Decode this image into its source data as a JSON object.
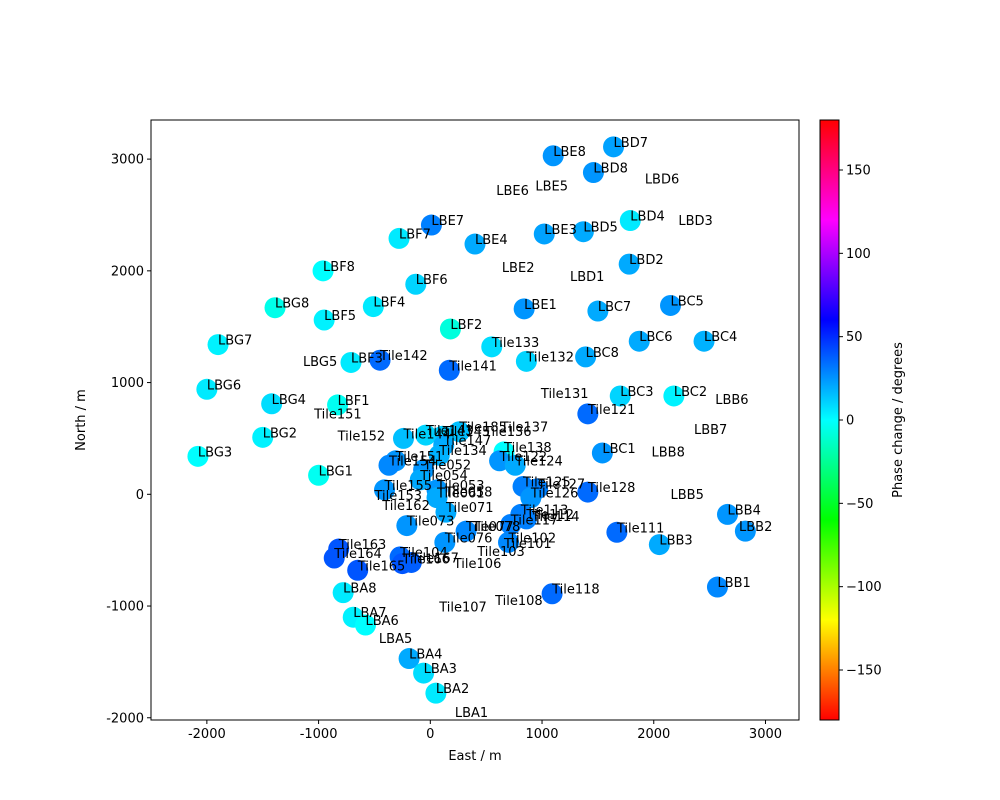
{
  "chart_data": {
    "type": "scatter",
    "xlabel": "East / m",
    "ylabel": "North / m",
    "xlim": [
      -2500,
      3300
    ],
    "ylim": [
      -2020,
      3350
    ],
    "xticks": [
      -2000,
      -1000,
      0,
      1000,
      2000,
      3000
    ],
    "yticks": [
      -2000,
      -1000,
      0,
      1000,
      2000,
      3000
    ],
    "colorbar": {
      "label": "Phase change / degrees",
      "range": [
        -180,
        180
      ],
      "ticks": [
        150,
        100,
        50,
        0,
        -50,
        -100,
        -150
      ],
      "colormap": "hsv"
    },
    "points": [
      {
        "label": "LBE8",
        "x": 1100,
        "y": 3030,
        "phase": 25
      },
      {
        "label": "LBD7",
        "x": 1640,
        "y": 3110,
        "phase": 22
      },
      {
        "label": "LBD8",
        "x": 1460,
        "y": 2880,
        "phase": 25
      },
      {
        "label": "LBE7",
        "x": 10,
        "y": 2410,
        "phase": 30
      },
      {
        "label": "LBF7",
        "x": -280,
        "y": 2290,
        "phase": 5
      },
      {
        "label": "LBE4",
        "x": 400,
        "y": 2240,
        "phase": 20
      },
      {
        "label": "LBE3",
        "x": 1020,
        "y": 2330,
        "phase": 22
      },
      {
        "label": "LBD5",
        "x": 1370,
        "y": 2350,
        "phase": 20
      },
      {
        "label": "LBD4",
        "x": 1790,
        "y": 2450,
        "phase": 5
      },
      {
        "label": "LBD2",
        "x": 1780,
        "y": 2060,
        "phase": 20
      },
      {
        "label": "LBF8",
        "x": -960,
        "y": 2000,
        "phase": 0
      },
      {
        "label": "LBF6",
        "x": -130,
        "y": 1880,
        "phase": 10
      },
      {
        "label": "LBF4",
        "x": -510,
        "y": 1680,
        "phase": 5
      },
      {
        "label": "LBG8",
        "x": -1390,
        "y": 1670,
        "phase": -5
      },
      {
        "label": "LBF5",
        "x": -950,
        "y": 1560,
        "phase": 3
      },
      {
        "label": "LBE1",
        "x": 840,
        "y": 1660,
        "phase": 25
      },
      {
        "label": "LBC7",
        "x": 1500,
        "y": 1640,
        "phase": 20
      },
      {
        "label": "LBC5",
        "x": 2150,
        "y": 1690,
        "phase": 25
      },
      {
        "label": "LBF2",
        "x": 180,
        "y": 1480,
        "phase": -8
      },
      {
        "label": "LBG7",
        "x": -1900,
        "y": 1340,
        "phase": 3
      },
      {
        "label": "LBC6",
        "x": 1870,
        "y": 1370,
        "phase": 20
      },
      {
        "label": "LBC4",
        "x": 2450,
        "y": 1370,
        "phase": 18
      },
      {
        "label": "Tile133",
        "x": 550,
        "y": 1320,
        "phase": 8
      },
      {
        "label": "LBF3",
        "x": -710,
        "y": 1180,
        "phase": 5
      },
      {
        "label": "Tile142",
        "x": -450,
        "y": 1200,
        "phase": 35
      },
      {
        "label": "Tile132",
        "x": 860,
        "y": 1190,
        "phase": 10
      },
      {
        "label": "LBC8",
        "x": 1390,
        "y": 1230,
        "phase": 20
      },
      {
        "label": "Tile141",
        "x": 170,
        "y": 1110,
        "phase": 35
      },
      {
        "label": "LBG6",
        "x": -2000,
        "y": 940,
        "phase": 5
      },
      {
        "label": "LBC3",
        "x": 1700,
        "y": 880,
        "phase": 10
      },
      {
        "label": "LBC2",
        "x": 2180,
        "y": 880,
        "phase": 3
      },
      {
        "label": "LBG4",
        "x": -1420,
        "y": 810,
        "phase": 8
      },
      {
        "label": "LBF1",
        "x": -830,
        "y": 800,
        "phase": -3
      },
      {
        "label": "Tile121",
        "x": 1410,
        "y": 720,
        "phase": 35
      },
      {
        "label": "LBG2",
        "x": -1500,
        "y": 510,
        "phase": 3
      },
      {
        "label": "Tile144",
        "x": -240,
        "y": 500,
        "phase": 15
      },
      {
        "label": "Tile143",
        "x": -40,
        "y": 530,
        "phase": 10
      },
      {
        "label": "Tile145",
        "x": 110,
        "y": 520,
        "phase": 12
      },
      {
        "label": "Tile185",
        "x": 260,
        "y": 560,
        "phase": 15
      },
      {
        "label": "Tile147",
        "x": 120,
        "y": 440,
        "phase": 20
      },
      {
        "label": "Tile134",
        "x": 80,
        "y": 350,
        "phase": 18
      },
      {
        "label": "Tile138",
        "x": 660,
        "y": 380,
        "phase": 0
      },
      {
        "label": "Tile122",
        "x": 620,
        "y": 300,
        "phase": 25
      },
      {
        "label": "Tile124",
        "x": 760,
        "y": 260,
        "phase": 20
      },
      {
        "label": "LBG3",
        "x": -2080,
        "y": 340,
        "phase": 0
      },
      {
        "label": "LBC1",
        "x": 1540,
        "y": 370,
        "phase": 25
      },
      {
        "label": "Tile151",
        "x": -310,
        "y": 300,
        "phase": 25
      },
      {
        "label": "Tile154",
        "x": -370,
        "y": 260,
        "phase": 28
      },
      {
        "label": "Tile052",
        "x": -60,
        "y": 220,
        "phase": 25
      },
      {
        "label": "LBG1",
        "x": -1000,
        "y": 170,
        "phase": -3
      },
      {
        "label": "Tile054",
        "x": -90,
        "y": 130,
        "phase": 20
      },
      {
        "label": "Tile155",
        "x": -410,
        "y": 40,
        "phase": 25
      },
      {
        "label": "Tile053",
        "x": 60,
        "y": 40,
        "phase": 25
      },
      {
        "label": "Tile125",
        "x": 830,
        "y": 70,
        "phase": 30
      },
      {
        "label": "Tile127",
        "x": 960,
        "y": 50,
        "phase": 30
      },
      {
        "label": "Tile128",
        "x": 1410,
        "y": 20,
        "phase": 35
      },
      {
        "label": "Tile061",
        "x": 60,
        "y": -30,
        "phase": 20
      },
      {
        "label": "Tile126",
        "x": 900,
        "y": -30,
        "phase": 25
      },
      {
        "label": "Tile071",
        "x": 140,
        "y": -160,
        "phase": 20
      },
      {
        "label": "Tile113",
        "x": 810,
        "y": -180,
        "phase": 30
      },
      {
        "label": "Tile112",
        "x": 860,
        "y": -220,
        "phase": 30
      },
      {
        "label": "Tile117",
        "x": 720,
        "y": -270,
        "phase": 30
      },
      {
        "label": "Tile073",
        "x": -210,
        "y": -280,
        "phase": 25
      },
      {
        "label": "Tile077",
        "x": 320,
        "y": -330,
        "phase": 28
      },
      {
        "label": "Tile111",
        "x": 1670,
        "y": -340,
        "phase": 35
      },
      {
        "label": "Tile076",
        "x": 130,
        "y": -430,
        "phase": 25
      },
      {
        "label": "Tile102",
        "x": 700,
        "y": -430,
        "phase": 28
      },
      {
        "label": "LBB3",
        "x": 2050,
        "y": -450,
        "phase": 20
      },
      {
        "label": "LBB4",
        "x": 2660,
        "y": -180,
        "phase": 25
      },
      {
        "label": "LBB2",
        "x": 2820,
        "y": -330,
        "phase": 25
      },
      {
        "label": "Tile163",
        "x": -820,
        "y": -490,
        "phase": 40
      },
      {
        "label": "Tile164",
        "x": -860,
        "y": -570,
        "phase": 40
      },
      {
        "label": "Tile104",
        "x": -270,
        "y": -560,
        "phase": 35
      },
      {
        "label": "Tile166",
        "x": -250,
        "y": -620,
        "phase": 40
      },
      {
        "label": "Tile165",
        "x": -650,
        "y": -680,
        "phase": 40
      },
      {
        "label": "Tile167",
        "x": -170,
        "y": -610,
        "phase": 38
      },
      {
        "label": "LBB1",
        "x": 2570,
        "y": -830,
        "phase": 28
      },
      {
        "label": "Tile118",
        "x": 1090,
        "y": -890,
        "phase": 35
      },
      {
        "label": "LBA8",
        "x": -780,
        "y": -880,
        "phase": 5
      },
      {
        "label": "LBA7",
        "x": -690,
        "y": -1100,
        "phase": 3
      },
      {
        "label": "LBA6",
        "x": -580,
        "y": -1170,
        "phase": 0
      },
      {
        "label": "LBA4",
        "x": -190,
        "y": -1470,
        "phase": 20
      },
      {
        "label": "LBA3",
        "x": -60,
        "y": -1600,
        "phase": 8
      },
      {
        "label": "LBA2",
        "x": 50,
        "y": -1780,
        "phase": 5
      }
    ],
    "labels": [
      {
        "label": "LBE6",
        "x": 590,
        "y": 2680
      },
      {
        "label": "LBE5",
        "x": 940,
        "y": 2720
      },
      {
        "label": "LBD6",
        "x": 1920,
        "y": 2780
      },
      {
        "label": "LBD3",
        "x": 2220,
        "y": 2410
      },
      {
        "label": "LBE2",
        "x": 640,
        "y": 1990
      },
      {
        "label": "LBD1",
        "x": 1250,
        "y": 1910
      },
      {
        "label": "LBG5",
        "x": -1140,
        "y": 1150
      },
      {
        "label": "Tile131",
        "x": 990,
        "y": 860
      },
      {
        "label": "LBB6",
        "x": 2550,
        "y": 810
      },
      {
        "label": "Tile151",
        "x": -1040,
        "y": 680
      },
      {
        "label": "LBB7",
        "x": 2360,
        "y": 540
      },
      {
        "label": "Tile152",
        "x": -830,
        "y": 480
      },
      {
        "label": "Tile136",
        "x": 480,
        "y": 520
      },
      {
        "label": "Tile137",
        "x": 630,
        "y": 560
      },
      {
        "label": "LBB8",
        "x": 1980,
        "y": 340
      },
      {
        "label": "LBB5",
        "x": 2150,
        "y": -40
      },
      {
        "label": "Tile153",
        "x": -500,
        "y": -50
      },
      {
        "label": "Tile162",
        "x": -430,
        "y": -140
      },
      {
        "label": "Tile058",
        "x": 130,
        "y": -20
      },
      {
        "label": "Tile114",
        "x": 910,
        "y": -240
      },
      {
        "label": "Tile078",
        "x": 380,
        "y": -330
      },
      {
        "label": "Tile101",
        "x": 660,
        "y": -480
      },
      {
        "label": "Tile103",
        "x": 420,
        "y": -550
      },
      {
        "label": "Tile106",
        "x": 210,
        "y": -660
      },
      {
        "label": "Tile107",
        "x": 80,
        "y": -1050
      },
      {
        "label": "Tile108",
        "x": 580,
        "y": -990
      },
      {
        "label": "LBA5",
        "x": -460,
        "y": -1330
      },
      {
        "label": "LBA1",
        "x": 220,
        "y": -2000
      }
    ]
  }
}
